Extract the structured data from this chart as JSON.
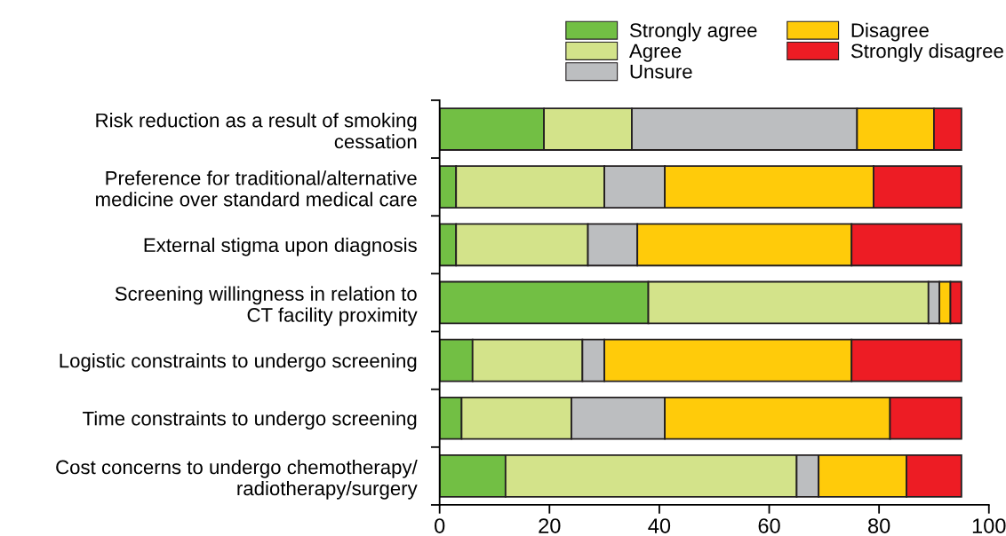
{
  "chart_data": {
    "type": "bar",
    "orientation": "horizontal",
    "stacked": true,
    "categories": [
      "Risk reduction as a result of smoking\ncessation",
      "Preference for traditional/alternative\nmedicine over standard medical care",
      "External stigma upon diagnosis",
      "Screening willingness in relation to\nCT facility proximity",
      "Logistic constraints to undergo screening",
      "Time constraints to undergo screening",
      "Cost concerns to undergo chemotherapy/\nradiotherapy/surgery"
    ],
    "series": [
      {
        "name": "Strongly agree",
        "color": "#72bf44",
        "values": [
          19,
          3,
          3,
          38,
          6,
          4,
          12
        ]
      },
      {
        "name": "Agree",
        "color": "#d3e38a",
        "values": [
          16,
          27,
          24,
          51,
          20,
          20,
          53
        ]
      },
      {
        "name": "Unsure",
        "color": "#bcbec0",
        "values": [
          41,
          11,
          9,
          2,
          4,
          17,
          4
        ]
      },
      {
        "name": "Disagree",
        "color": "#ffcb0a",
        "values": [
          14,
          38,
          39,
          2,
          45,
          41,
          16
        ]
      },
      {
        "name": "Strongly disagree",
        "color": "#ed1c24",
        "values": [
          5,
          16,
          20,
          2,
          20,
          13,
          10
        ]
      }
    ],
    "xlim": [
      0,
      100
    ],
    "xticks": [
      0,
      20,
      40,
      60,
      80,
      100
    ],
    "grid": false,
    "legend": "top right"
  }
}
